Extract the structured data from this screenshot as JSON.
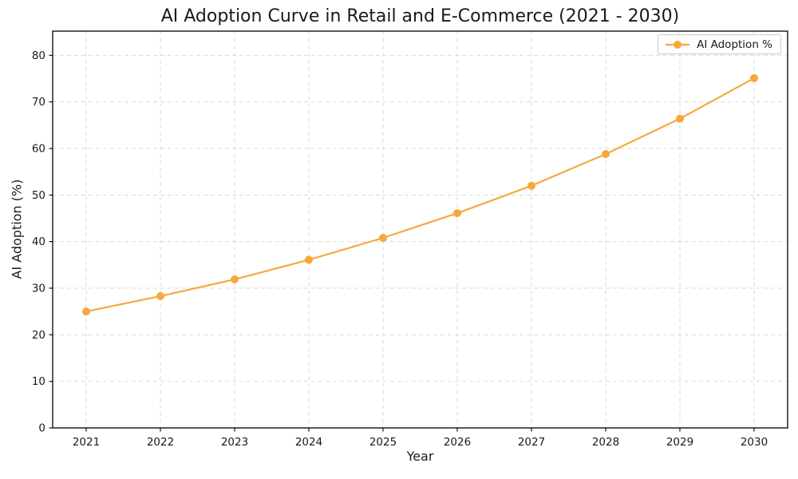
{
  "title": "AI Adoption Curve in Retail and E-Commerce (2021 - 2030)",
  "chart_data": {
    "type": "line",
    "title": "AI Adoption Curve in Retail and E-Commerce (2021 - 2030)",
    "xlabel": "Year",
    "ylabel": "AI Adoption (%)",
    "x": [
      2021,
      2022,
      2023,
      2024,
      2025,
      2026,
      2027,
      2028,
      2029,
      2030
    ],
    "series": [
      {
        "name": "AI Adoption %",
        "values": [
          25.0,
          28.3,
          31.9,
          36.1,
          40.8,
          46.1,
          52.0,
          58.8,
          66.4,
          75.1
        ],
        "color": "#F5A93C",
        "marker": "circle"
      }
    ],
    "ylim": [
      0,
      85.2
    ],
    "y_ticks": [
      0,
      10,
      20,
      30,
      40,
      50,
      60,
      70,
      80
    ],
    "grid": true,
    "grid_style": "dashed",
    "grid_color": "#d9d9d9",
    "legend_position": "upper right",
    "legend_entries": [
      "AI Adoption %"
    ]
  }
}
